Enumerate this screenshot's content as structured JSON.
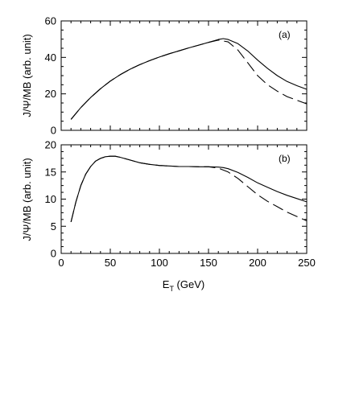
{
  "chart_data": [
    {
      "type": "line",
      "panel_label": "(a)",
      "title": "",
      "xlabel": "",
      "ylabel": "J/Ψ/MB (arb. unit)",
      "xlim": [
        0,
        250
      ],
      "ylim": [
        0,
        60
      ],
      "x_ticks": [
        0,
        50,
        100,
        150,
        200,
        250
      ],
      "y_ticks": [
        0,
        20,
        40,
        60
      ],
      "x_tick_labels": [],
      "grid": false,
      "legend": "none",
      "series": [
        {
          "style": "solid",
          "x": [
            10,
            20,
            30,
            40,
            50,
            60,
            70,
            80,
            90,
            100,
            110,
            120,
            130,
            140,
            150,
            160,
            165,
            170,
            180,
            190,
            200,
            210,
            220,
            230,
            240,
            250
          ],
          "y": [
            6,
            12.5,
            18,
            22.8,
            27,
            30.5,
            33.5,
            36,
            38.2,
            40.2,
            42,
            43.6,
            45.2,
            46.7,
            48.2,
            49.8,
            50.3,
            49.8,
            47.5,
            43.5,
            38.5,
            34,
            30,
            26.8,
            24.5,
            22.5
          ]
        },
        {
          "style": "dashed",
          "x": [
            10,
            20,
            30,
            40,
            50,
            60,
            70,
            80,
            90,
            100,
            110,
            120,
            130,
            140,
            150,
            160,
            170,
            180,
            190,
            200,
            210,
            220,
            230,
            240,
            250
          ],
          "y": [
            6,
            12.5,
            18,
            22.8,
            27,
            30.5,
            33.5,
            36,
            38.2,
            40.2,
            42,
            43.6,
            45.2,
            46.7,
            48.2,
            49.5,
            48.5,
            44,
            37,
            30,
            25,
            21.5,
            18.5,
            16.5,
            14.5
          ]
        }
      ]
    },
    {
      "type": "line",
      "panel_label": "(b)",
      "title": "",
      "xlabel": "E_T (GeV)",
      "ylabel": "J/Ψ/MB (arb. unit)",
      "xlim": [
        0,
        250
      ],
      "ylim": [
        0,
        20
      ],
      "x_ticks": [
        0,
        50,
        100,
        150,
        200,
        250
      ],
      "y_ticks": [
        0,
        5,
        10,
        15,
        20
      ],
      "x_tick_labels": [
        "0",
        "50",
        "100",
        "150",
        "200",
        "250"
      ],
      "grid": false,
      "legend": "none",
      "series": [
        {
          "style": "solid",
          "x": [
            10,
            15,
            20,
            25,
            30,
            35,
            40,
            45,
            50,
            55,
            60,
            70,
            80,
            90,
            100,
            110,
            120,
            130,
            140,
            150,
            160,
            165,
            170,
            180,
            190,
            200,
            210,
            220,
            230,
            240,
            250
          ],
          "y": [
            5.8,
            9.5,
            12.5,
            14.6,
            16,
            17,
            17.5,
            17.8,
            17.9,
            17.9,
            17.7,
            17.2,
            16.7,
            16.4,
            16.2,
            16.1,
            16,
            16,
            15.95,
            15.95,
            15.9,
            15.8,
            15.6,
            14.9,
            14,
            13,
            12.2,
            11.4,
            10.7,
            10.1,
            9.5
          ]
        },
        {
          "style": "dashed",
          "x": [
            10,
            15,
            20,
            25,
            30,
            35,
            40,
            45,
            50,
            55,
            60,
            70,
            80,
            90,
            100,
            110,
            120,
            130,
            140,
            150,
            160,
            170,
            180,
            190,
            200,
            210,
            220,
            230,
            240,
            250
          ],
          "y": [
            5.8,
            9.5,
            12.5,
            14.6,
            16,
            17,
            17.5,
            17.8,
            17.9,
            17.9,
            17.7,
            17.2,
            16.7,
            16.4,
            16.2,
            16.1,
            16,
            16,
            15.95,
            15.95,
            15.7,
            15,
            13.8,
            12.3,
            10.8,
            9.6,
            8.6,
            7.6,
            6.8,
            6
          ]
        }
      ]
    }
  ]
}
